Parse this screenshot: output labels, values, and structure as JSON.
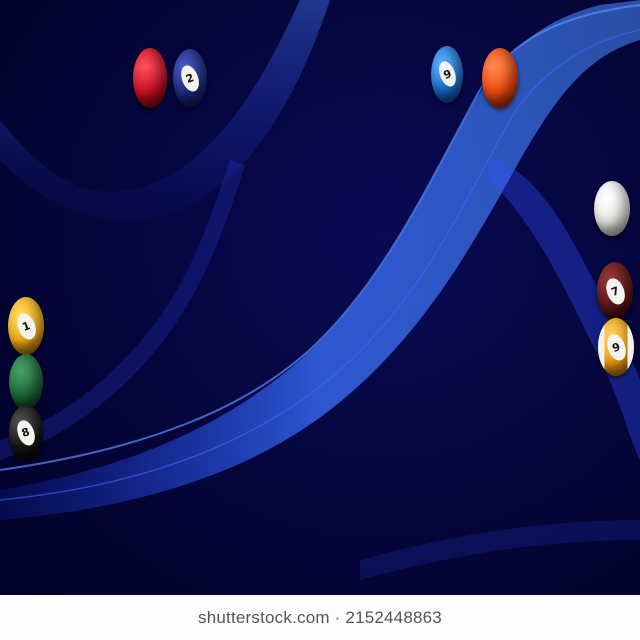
{
  "watermark": {
    "text": "shutterstock.com · 2152448863"
  },
  "balls": [
    {
      "id": "red-solid",
      "color": "#cc1122",
      "number": ""
    },
    {
      "id": "blue-2",
      "color": "#1b2a7a",
      "number": "2"
    },
    {
      "id": "blue-stripe-9",
      "color": "#1a6fd0",
      "number": "9"
    },
    {
      "id": "orange-solid",
      "color": "#ee4a10",
      "number": ""
    },
    {
      "id": "cue-ball",
      "color": "#f2f2ee",
      "number": ""
    },
    {
      "id": "maroon-7",
      "color": "#5a1414",
      "number": "7"
    },
    {
      "id": "yellow-stripe-9",
      "color": "#f0a010",
      "number": "9"
    },
    {
      "id": "yellow-1",
      "color": "#f2b01a",
      "number": "1"
    },
    {
      "id": "green-solid",
      "color": "#1f6a3a",
      "number": ""
    },
    {
      "id": "black-8",
      "color": "#151515",
      "number": "8"
    }
  ],
  "colors": {
    "background": "#05053a",
    "wave": "#2a5cff",
    "footer": "#fdfdfd"
  }
}
